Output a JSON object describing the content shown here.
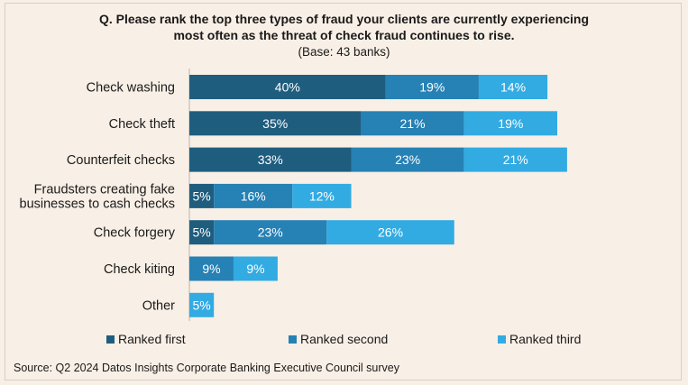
{
  "chart_data": {
    "type": "bar",
    "orientation": "horizontal",
    "stacked": true,
    "title_line1": "Q. Please rank the top three types of fraud your clients are currently experiencing",
    "title_line2": "most often as the threat of check fraud continues to rise.",
    "subtitle": "(Base: 43 banks)",
    "categories": [
      [
        "Check washing"
      ],
      [
        "Check theft"
      ],
      [
        "Counterfeit checks"
      ],
      [
        "Fraudsters creating fake",
        "businesses to cash checks"
      ],
      [
        "Check forgery"
      ],
      [
        "Check kiting"
      ],
      [
        "Other"
      ]
    ],
    "series": [
      {
        "name": "Ranked first",
        "color": "#1f5d7f",
        "values": [
          40,
          35,
          33,
          5,
          5,
          0,
          0
        ]
      },
      {
        "name": "Ranked second",
        "color": "#2681b4",
        "values": [
          19,
          21,
          23,
          16,
          23,
          9,
          0
        ]
      },
      {
        "name": "Ranked third",
        "color": "#32abe2",
        "values": [
          14,
          19,
          21,
          12,
          26,
          9,
          5
        ]
      }
    ],
    "value_suffix": "%",
    "grid": false,
    "legend_position": "bottom"
  },
  "source": "Source: Q2 2024 Datos Insights Corporate Banking Executive Council survey"
}
